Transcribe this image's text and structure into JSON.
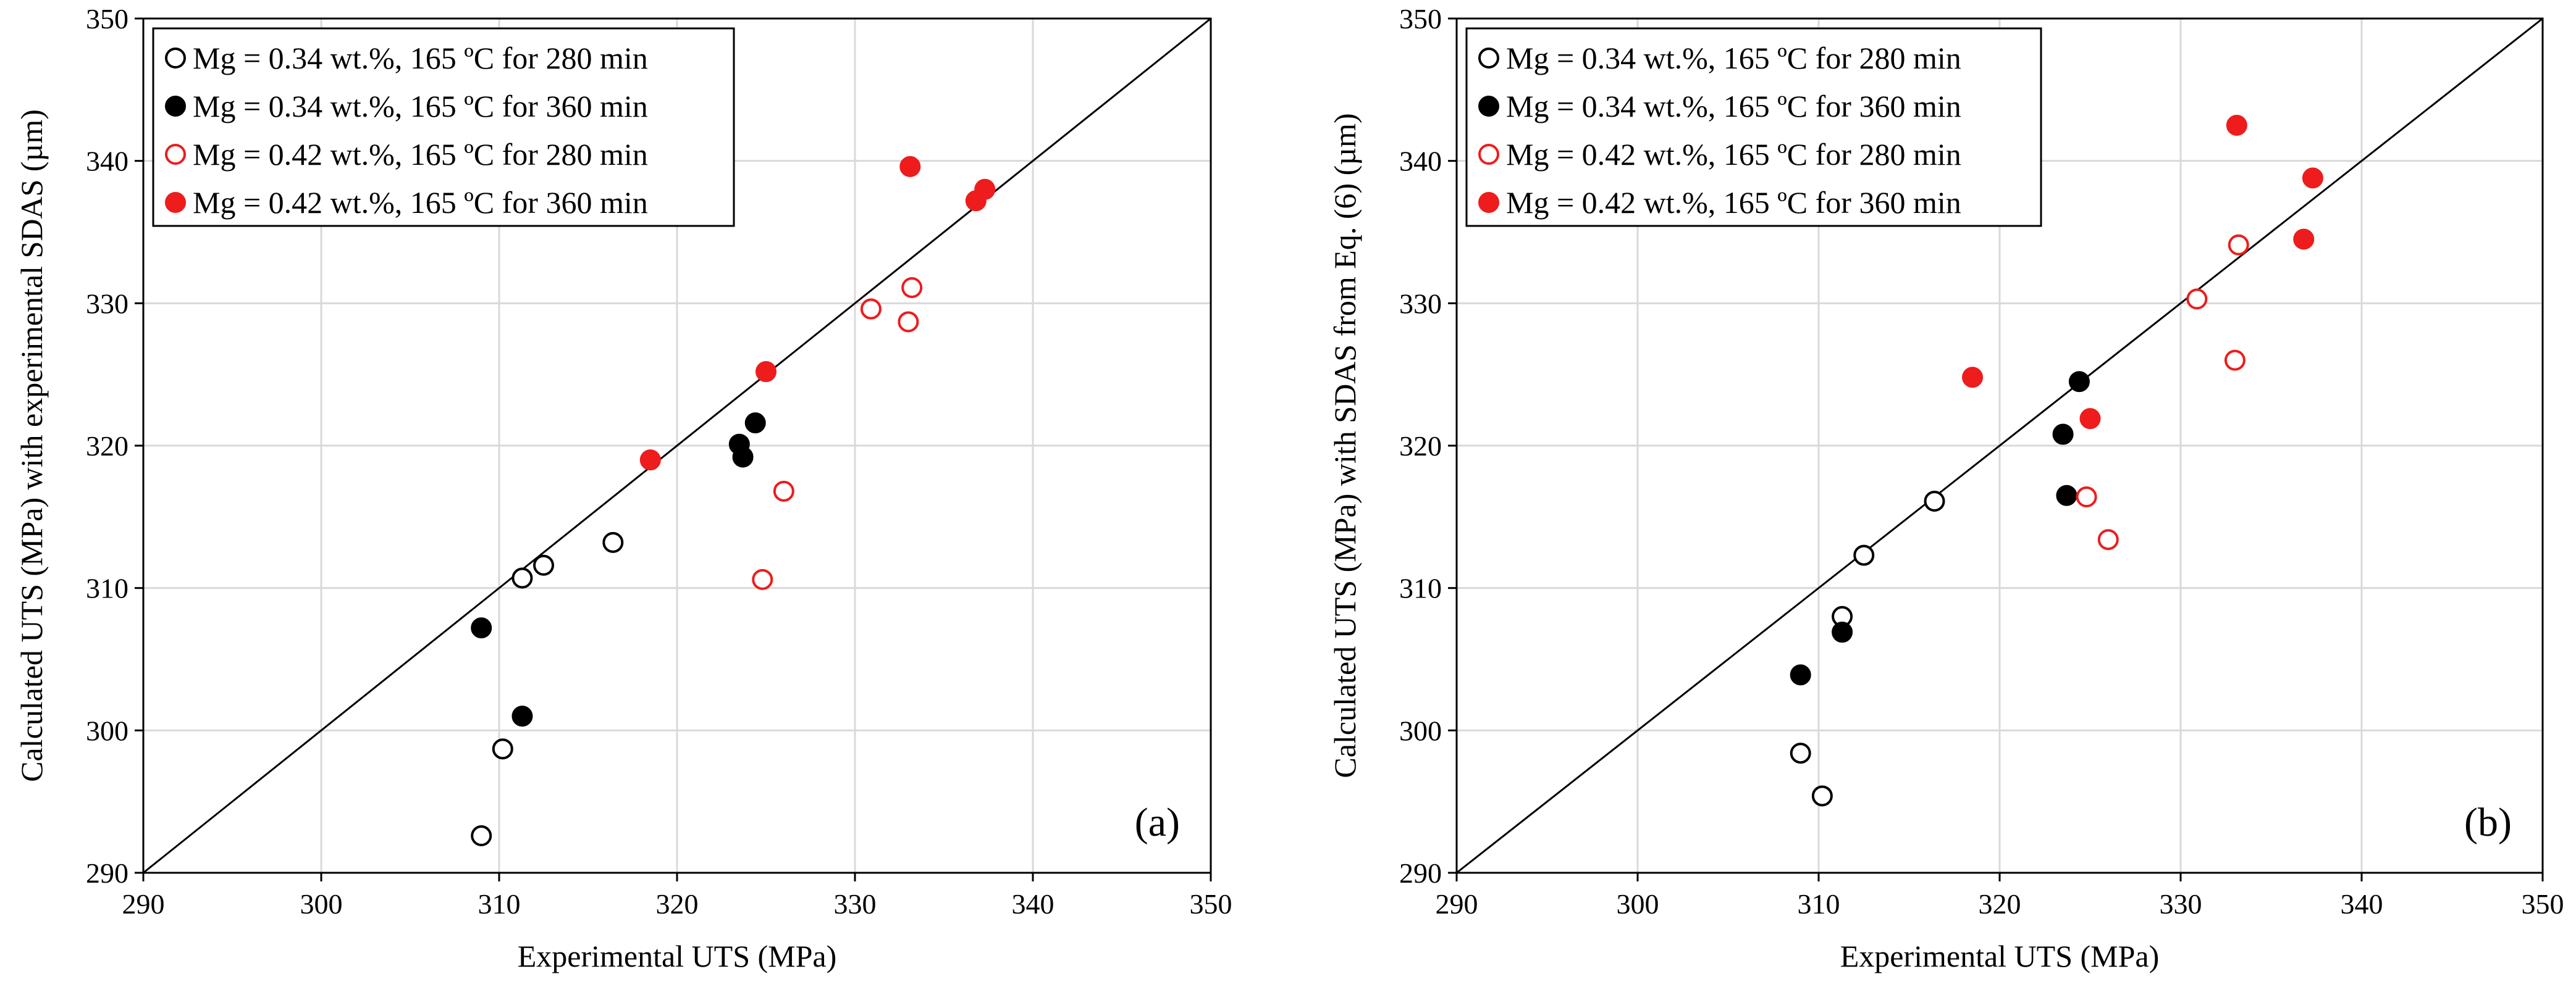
{
  "colors": {
    "black": "#000000",
    "red": "#ee1c1c",
    "grid": "#d9d9d9"
  },
  "chart_data": [
    {
      "type": "scatter",
      "panel_label": "(a)",
      "xlabel": "Experimental UTS (MPa)",
      "ylabel": "Calculated UTS (MPa) with experimental SDAS (µm)",
      "xlim": [
        290,
        350
      ],
      "ylim": [
        290,
        350
      ],
      "xticks": [
        "290",
        "300",
        "310",
        "320",
        "330",
        "340",
        "350"
      ],
      "yticks": [
        "290",
        "300",
        "310",
        "320",
        "330",
        "340",
        "350"
      ],
      "grid": true,
      "legend_position": "top-left",
      "diagonal": [
        [
          290,
          290
        ],
        [
          350,
          350
        ]
      ],
      "series": [
        {
          "name": "Mg = 0.34 wt.%, 165 ºC for 280 min",
          "color": "#000000",
          "filled": false,
          "points": [
            [
              309.0,
              292.6
            ],
            [
              310.2,
              298.7
            ],
            [
              311.3,
              310.7
            ],
            [
              312.5,
              311.6
            ],
            [
              316.4,
              313.2
            ]
          ]
        },
        {
          "name": "Mg = 0.34 wt.%, 165 ºC for 360 min",
          "color": "#000000",
          "filled": true,
          "points": [
            [
              309.0,
              307.2
            ],
            [
              311.3,
              301.0
            ],
            [
              323.5,
              320.1
            ],
            [
              323.7,
              319.2
            ],
            [
              324.4,
              321.6
            ]
          ]
        },
        {
          "name": "Mg = 0.42 wt.%, 165 ºC for 280 min",
          "color": "#ee1c1c",
          "filled": false,
          "points": [
            [
              324.8,
              310.6
            ],
            [
              326.0,
              316.8
            ],
            [
              330.9,
              329.6
            ],
            [
              333.0,
              328.7
            ],
            [
              333.2,
              331.1
            ]
          ]
        },
        {
          "name": "Mg = 0.42 wt.%, 165 ºC for 360 min",
          "color": "#ee1c1c",
          "filled": true,
          "points": [
            [
              318.5,
              319.0
            ],
            [
              325.0,
              325.2
            ],
            [
              333.1,
              339.6
            ],
            [
              336.8,
              337.2
            ],
            [
              337.3,
              338.0
            ]
          ]
        }
      ]
    },
    {
      "type": "scatter",
      "panel_label": "(b)",
      "xlabel": "Experimental UTS (MPa)",
      "ylabel": "Calculated UTS (MPa) with SDAS from Eq. (6) (µm)",
      "xlim": [
        290,
        350
      ],
      "ylim": [
        290,
        350
      ],
      "xticks": [
        "290",
        "300",
        "310",
        "320",
        "330",
        "340",
        "350"
      ],
      "yticks": [
        "290",
        "300",
        "310",
        "320",
        "330",
        "340",
        "350"
      ],
      "grid": true,
      "legend_position": "top-left",
      "diagonal": [
        [
          290,
          290
        ],
        [
          350,
          350
        ]
      ],
      "series": [
        {
          "name": "Mg = 0.34 wt.%, 165 ºC for 280 min",
          "color": "#000000",
          "filled": false,
          "points": [
            [
              309.0,
              298.4
            ],
            [
              310.2,
              295.4
            ],
            [
              311.3,
              308.0
            ],
            [
              312.5,
              312.3
            ],
            [
              316.4,
              316.1
            ]
          ]
        },
        {
          "name": "Mg = 0.34 wt.%, 165 ºC for 360 min",
          "color": "#000000",
          "filled": true,
          "points": [
            [
              309.0,
              303.9
            ],
            [
              311.3,
              306.9
            ],
            [
              323.5,
              320.8
            ],
            [
              323.7,
              316.5
            ],
            [
              324.4,
              324.5
            ]
          ]
        },
        {
          "name": "Mg = 0.42 wt.%, 165 ºC for 280 min",
          "color": "#ee1c1c",
          "filled": false,
          "points": [
            [
              324.8,
              316.4
            ],
            [
              326.0,
              313.4
            ],
            [
              330.9,
              330.3
            ],
            [
              333.0,
              326.0
            ],
            [
              333.2,
              334.1
            ]
          ]
        },
        {
          "name": "Mg = 0.42 wt.%, 165 ºC for 360 min",
          "color": "#ee1c1c",
          "filled": true,
          "points": [
            [
              318.5,
              324.8
            ],
            [
              325.0,
              321.9
            ],
            [
              333.1,
              342.5
            ],
            [
              336.8,
              334.5
            ],
            [
              337.3,
              338.8
            ]
          ]
        }
      ]
    }
  ]
}
